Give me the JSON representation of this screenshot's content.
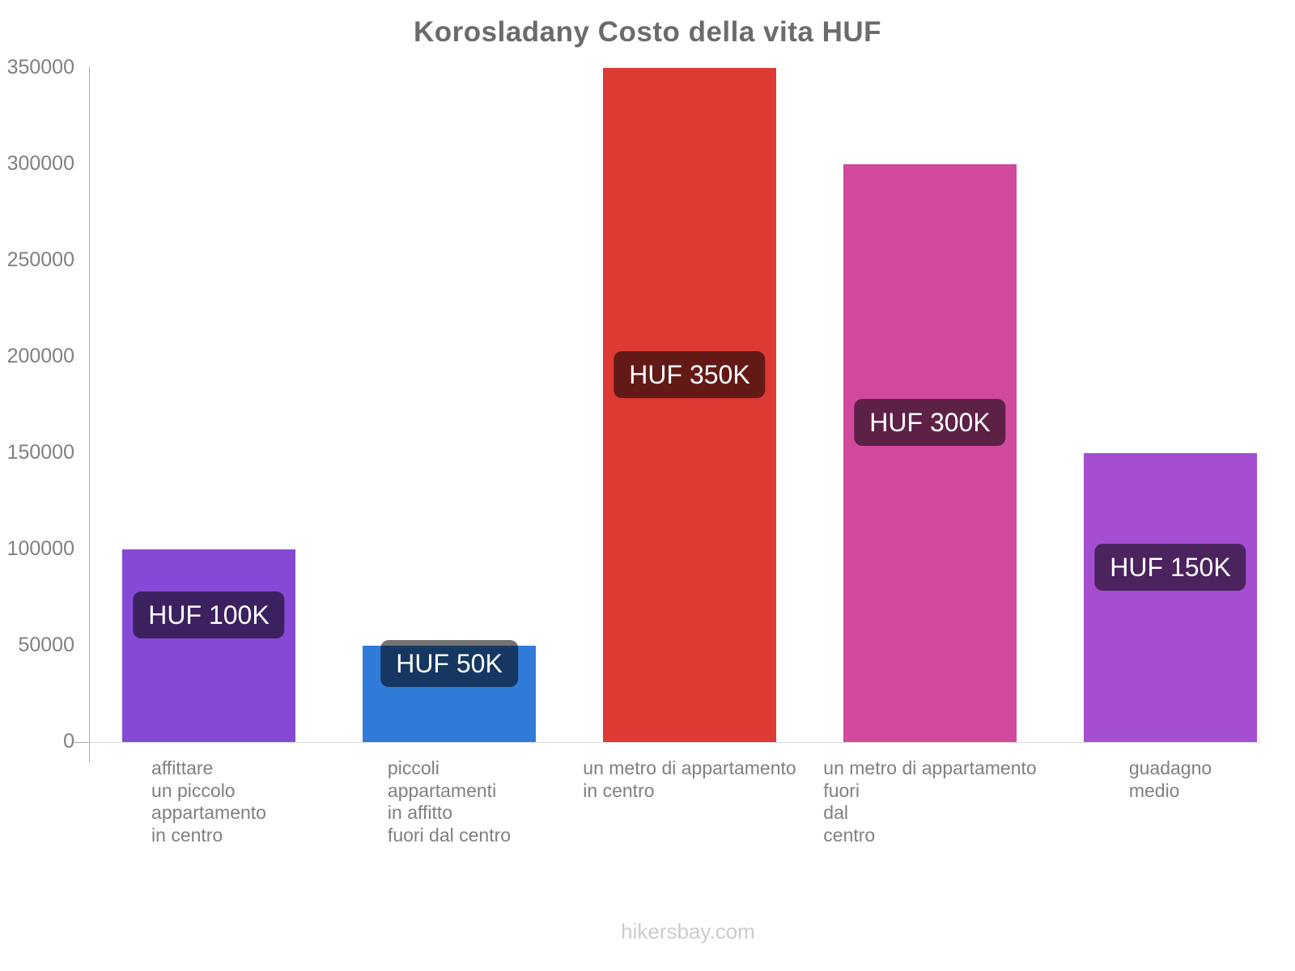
{
  "chart_data": {
    "type": "bar",
    "title": "Korosladany Costo della vita HUF",
    "categories": [
      [
        "affittare",
        "un piccolo",
        "appartamento",
        "in centro"
      ],
      [
        "piccoli",
        "appartamenti",
        "in affitto",
        "fuori dal centro"
      ],
      [
        "un metro di appartamento",
        "in centro"
      ],
      [
        "un metro di appartamento",
        "fuori",
        "dal",
        "centro"
      ],
      [
        "guadagno",
        "medio"
      ]
    ],
    "values": [
      100000,
      50000,
      350000,
      300000,
      150000
    ],
    "value_labels": [
      "HUF 100K",
      "HUF 50K",
      "HUF 350K",
      "HUF 300K",
      "HUF 150K"
    ],
    "bar_colors": [
      "#8549d6",
      "#307bd7",
      "#dc3a33",
      "#d1499c",
      "#a64ed2"
    ],
    "ylim": [
      0,
      350000
    ],
    "yticks": [
      0,
      50000,
      100000,
      150000,
      200000,
      250000,
      300000,
      350000
    ],
    "xlabel": "",
    "ylabel": "",
    "legend": "none",
    "grid": "baseline-only"
  },
  "footer": {
    "text": "hikersbay.com"
  },
  "colors": {
    "title": "#6b6b6b",
    "axis_line": "#a9a9a9",
    "baseline": "#d9d9d9",
    "tick_label": "#808080",
    "category_label": "#808080",
    "value_label_bg": "rgba(0,0,0,0.55)",
    "value_label_text": "#ffffff",
    "footer": "#cccccc"
  }
}
